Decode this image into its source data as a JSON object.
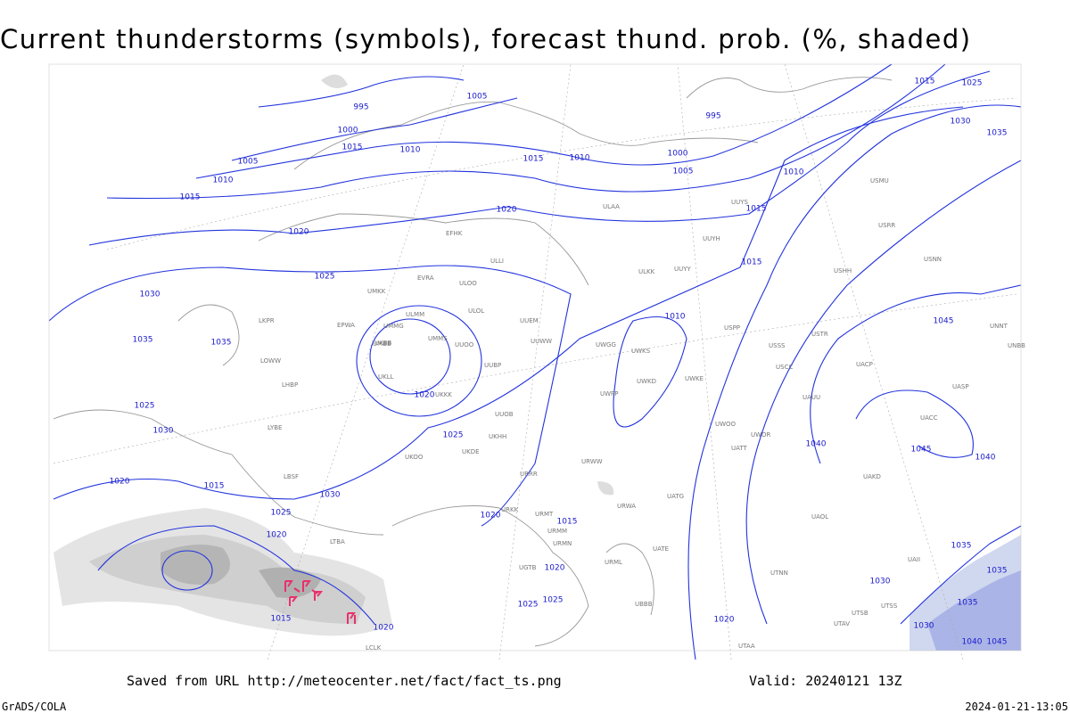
{
  "header": {
    "title": "Current thunderstorms (symbols), forecast thund. prob. (%, shaded)"
  },
  "footer": {
    "source": "Saved from URL http://meteocenter.net/fact/fact_ts.png",
    "valid": "Valid: 20240121 13Z",
    "credit": "GrADS/COLA",
    "timestamp": "2024-01-21-13:05"
  },
  "isobar_labels": [
    995,
    1005,
    995,
    1000,
    1015,
    1010,
    1005,
    1010,
    1015,
    1015,
    1010,
    1000,
    1005,
    1010,
    1015,
    1025,
    1030,
    1035,
    1020,
    1020,
    1015,
    1015,
    1025,
    1030,
    1035,
    1035,
    1010,
    1020,
    1025,
    1025,
    1030,
    1020,
    1015,
    1030,
    1025,
    1020,
    1020,
    1015,
    1020,
    1025,
    1025,
    1015,
    1020,
    1040,
    1045,
    1040,
    1045,
    1035,
    1035,
    1030,
    1020,
    1030,
    1040,
    1045,
    1035
  ],
  "stations": [
    "EFHK",
    "ULLI",
    "ULOO",
    "UMMS",
    "EVRA",
    "UMKK",
    "ULOL",
    "UUEM",
    "UUWW",
    "UUOO",
    "UWGG",
    "UWKS",
    "UWKD",
    "UWKE",
    "UUYY",
    "UUYH",
    "ULKK",
    "UUYS",
    "ULAA",
    "ULMM",
    "UUBP",
    "UKKK",
    "UKLL",
    "UKBB",
    "UKHH",
    "UKDE",
    "URRR",
    "URWW",
    "URWA",
    "URKK",
    "URMT",
    "URMM",
    "URMN",
    "URML",
    "UGTB",
    "UBBB",
    "USSS",
    "USCC",
    "USTR",
    "USPP",
    "UATT",
    "UACC",
    "UACP",
    "UASP",
    "UAKD",
    "UATG",
    "UAOL",
    "UTAA",
    "UTSS",
    "UTNN",
    "UAII",
    "USNN",
    "USRR",
    "USHH",
    "USMU",
    "UNNT",
    "UNBB",
    "LOWW",
    "LKPR",
    "EPWA",
    "LHBP",
    "LYBE",
    "LBSF",
    "LTBA",
    "LCLK",
    "UMMG",
    "UMBB",
    "UKOO",
    "UUOB",
    "UWOO",
    "UWOR",
    "UWPP",
    "UAUU",
    "UATE",
    "UTSB",
    "UTAV"
  ]
}
